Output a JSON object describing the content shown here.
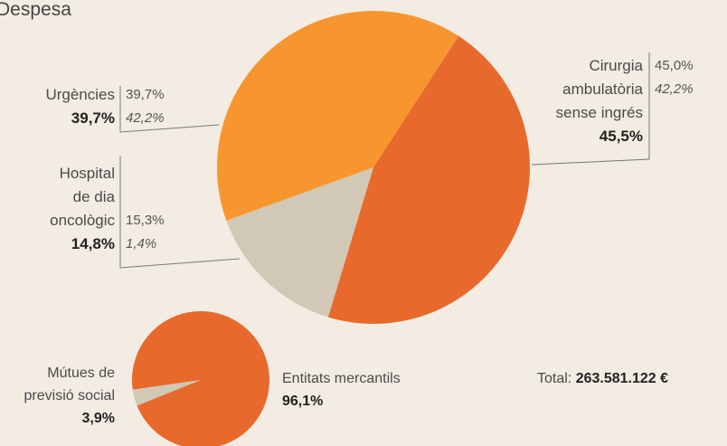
{
  "chart_data": [
    {
      "type": "pie",
      "title": "Despesa",
      "categories": [
        "Urgències",
        "Hospital\nde dia\noncològic",
        "Cirurgia\nambulatòria\nsense ingrés"
      ],
      "values": [
        39.7,
        14.8,
        45.5
      ],
      "value_labels": [
        "39,7%",
        "14,8%",
        "45,5%"
      ],
      "colors": [
        "#f7952f",
        "#d2c8b6",
        "#e8692c"
      ],
      "comparisons": [
        [
          {
            "value": 39.7,
            "label": "39,7%"
          },
          {
            "value": 42.2,
            "label": "42,2%"
          }
        ],
        [
          {
            "value": 15.3,
            "label": "15,3%"
          },
          {
            "value": 1.4,
            "label": "1,4%"
          }
        ],
        [
          {
            "value": 45.0,
            "label": "45,0%"
          },
          {
            "value": 42.2,
            "label": "42,2%"
          }
        ]
      ]
    },
    {
      "type": "pie",
      "categories": [
        "Mútues de\nprevisió social",
        "Entitats mercantils"
      ],
      "values": [
        3.9,
        96.1
      ],
      "value_labels": [
        "3,9%",
        "96,1%"
      ],
      "colors": [
        "#d2c8b6",
        "#e8692c"
      ],
      "total": {
        "label": "Total:",
        "amount": "263.581.122 €"
      }
    }
  ]
}
